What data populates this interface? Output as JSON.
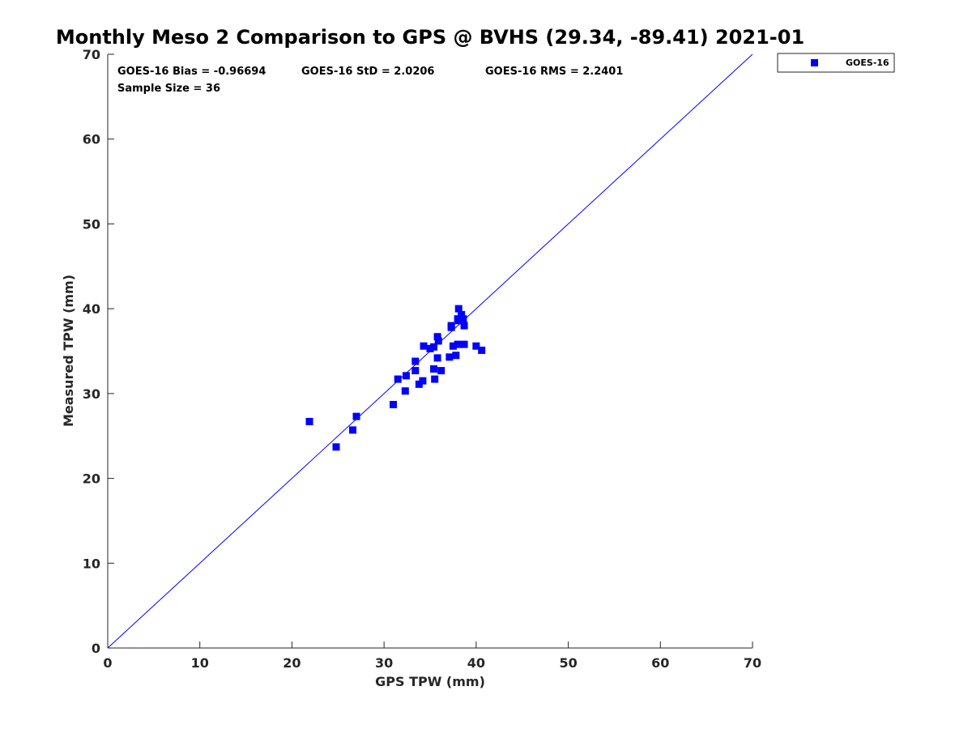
{
  "chart_data": {
    "type": "scatter",
    "title": "Monthly Meso 2 Comparison to GPS @ BVHS (29.34, -89.41) 2021-01",
    "xlabel": "GPS TPW (mm)",
    "ylabel": "Measured TPW (mm)",
    "xlim": [
      0,
      70
    ],
    "ylim": [
      0,
      70
    ],
    "xticks": [
      "0",
      "10",
      "20",
      "30",
      "40",
      "50",
      "60",
      "70"
    ],
    "yticks": [
      "0",
      "10",
      "20",
      "30",
      "40",
      "50",
      "60",
      "70"
    ],
    "grid": false,
    "legend_position": "top-right outside",
    "reference_line": {
      "x": [
        0,
        70
      ],
      "y": [
        0,
        70
      ],
      "color": "#0000ff"
    },
    "annotations": {
      "bias": "GOES-16 Bias = -0.96694",
      "std": "GOES-16 StD = 2.0206",
      "rms": "GOES-16 RMS = 2.2401",
      "sample_size": "Sample Size = 36"
    },
    "series": [
      {
        "name": "GOES-16",
        "color": "#0000ff",
        "marker": "square",
        "x": [
          21.9,
          24.8,
          26.6,
          27.0,
          31.0,
          31.5,
          32.3,
          32.4,
          33.4,
          33.4,
          33.8,
          34.2,
          34.3,
          35.0,
          35.4,
          35.4,
          35.5,
          35.8,
          35.9,
          35.8,
          36.2,
          37.1,
          37.3,
          37.3,
          37.5,
          37.8,
          38.0,
          38.0,
          38.1,
          38.1,
          38.4,
          38.6,
          38.7,
          38.7,
          40.0,
          40.6
        ],
        "y": [
          26.7,
          23.7,
          25.7,
          27.3,
          28.7,
          31.7,
          30.3,
          32.1,
          33.8,
          32.7,
          31.1,
          31.5,
          35.6,
          35.3,
          35.5,
          32.9,
          31.7,
          34.2,
          36.2,
          36.7,
          32.7,
          34.3,
          37.8,
          38.0,
          35.6,
          34.5,
          35.8,
          38.8,
          40.0,
          38.6,
          39.3,
          38.8,
          38.0,
          35.8,
          35.6,
          35.1
        ]
      }
    ]
  }
}
